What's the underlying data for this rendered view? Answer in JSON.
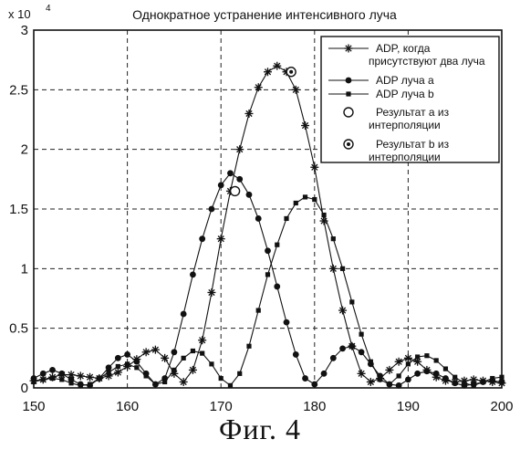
{
  "figure": {
    "caption": "Фиг. 4"
  },
  "chart_data": {
    "type": "line",
    "title": "Однократное устранение интенсивного луча",
    "xlabel": "",
    "ylabel": "",
    "y_scale_label": "x 10",
    "y_scale_exponent": "4",
    "xlim": [
      150,
      200
    ],
    "ylim": [
      0,
      3
    ],
    "xticks": [
      "150",
      "160",
      "170",
      "180",
      "190",
      "200"
    ],
    "yticks": [
      "0",
      "0.5",
      "1",
      "1.5",
      "2",
      "2.5",
      "3"
    ],
    "grid": "dashed",
    "legend_position": "top-right",
    "series": [
      {
        "name": "ADP, когда присутствуют два луча",
        "name_lines": [
          "ADP, когда",
          "присутствуют два луча"
        ],
        "marker": "star",
        "line": true,
        "x": [
          150,
          151,
          152,
          153,
          154,
          155,
          156,
          157,
          158,
          159,
          160,
          161,
          162,
          163,
          164,
          165,
          166,
          167,
          168,
          169,
          170,
          171,
          172,
          173,
          174,
          175,
          176,
          177,
          178,
          179,
          180,
          181,
          182,
          183,
          184,
          185,
          186,
          187,
          188,
          189,
          190,
          191,
          192,
          193,
          194,
          195,
          196,
          197,
          198,
          199,
          200
        ],
        "values": [
          0.06,
          0.07,
          0.09,
          0.11,
          0.11,
          0.1,
          0.09,
          0.08,
          0.1,
          0.13,
          0.18,
          0.24,
          0.3,
          0.32,
          0.25,
          0.12,
          0.05,
          0.15,
          0.4,
          0.8,
          1.25,
          1.65,
          2.0,
          2.3,
          2.52,
          2.65,
          2.7,
          2.65,
          2.5,
          2.2,
          1.85,
          1.4,
          1.0,
          0.65,
          0.35,
          0.12,
          0.05,
          0.08,
          0.15,
          0.22,
          0.25,
          0.22,
          0.15,
          0.09,
          0.06,
          0.05,
          0.06,
          0.07,
          0.06,
          0.05,
          0.04
        ]
      },
      {
        "name": "ADP луча a",
        "name_lines": [
          "ADP луча a"
        ],
        "marker": "dot",
        "line": true,
        "x": [
          150,
          151,
          152,
          153,
          154,
          155,
          156,
          157,
          158,
          159,
          160,
          161,
          162,
          163,
          164,
          165,
          166,
          167,
          168,
          169,
          170,
          171,
          172,
          173,
          174,
          175,
          176,
          177,
          178,
          179,
          180,
          181,
          182,
          183,
          184,
          185,
          186,
          187,
          188,
          189,
          190,
          191,
          192,
          193,
          194,
          195,
          196,
          197,
          198,
          199,
          200
        ],
        "values": [
          0.08,
          0.12,
          0.15,
          0.12,
          0.07,
          0.03,
          0.02,
          0.08,
          0.17,
          0.25,
          0.28,
          0.22,
          0.12,
          0.03,
          0.08,
          0.3,
          0.62,
          0.95,
          1.25,
          1.5,
          1.7,
          1.8,
          1.75,
          1.62,
          1.42,
          1.15,
          0.85,
          0.55,
          0.28,
          0.08,
          0.03,
          0.12,
          0.25,
          0.33,
          0.35,
          0.3,
          0.2,
          0.1,
          0.03,
          0.02,
          0.07,
          0.12,
          0.14,
          0.12,
          0.08,
          0.04,
          0.02,
          0.03,
          0.05,
          0.06,
          0.05
        ]
      },
      {
        "name": "ADP луча b",
        "name_lines": [
          "ADP луча b"
        ],
        "marker": "square",
        "line": true,
        "x": [
          150,
          151,
          152,
          153,
          154,
          155,
          156,
          157,
          158,
          159,
          160,
          161,
          162,
          163,
          164,
          165,
          166,
          167,
          168,
          169,
          170,
          171,
          172,
          173,
          174,
          175,
          176,
          177,
          178,
          179,
          180,
          181,
          182,
          183,
          184,
          185,
          186,
          187,
          188,
          189,
          190,
          191,
          192,
          193,
          194,
          195,
          196,
          197,
          198,
          199,
          200
        ],
        "values": [
          0.05,
          0.07,
          0.08,
          0.07,
          0.04,
          0.02,
          0.03,
          0.08,
          0.13,
          0.18,
          0.2,
          0.17,
          0.1,
          0.03,
          0.05,
          0.15,
          0.25,
          0.31,
          0.29,
          0.2,
          0.08,
          0.02,
          0.12,
          0.35,
          0.65,
          0.95,
          1.2,
          1.42,
          1.55,
          1.6,
          1.58,
          1.45,
          1.25,
          1.0,
          0.72,
          0.45,
          0.22,
          0.07,
          0.03,
          0.1,
          0.2,
          0.26,
          0.27,
          0.23,
          0.16,
          0.09,
          0.04,
          0.02,
          0.05,
          0.08,
          0.09
        ]
      },
      {
        "name": "Результат а из интерполяции",
        "name_lines": [
          "Результат а из",
          "интерполяции"
        ],
        "marker": "open-circle",
        "line": false,
        "x": [
          171.5
        ],
        "values": [
          1.65
        ]
      },
      {
        "name": "Результат b из интерполяции",
        "name_lines": [
          "Результат b из",
          "интерполяции"
        ],
        "marker": "open-circle-dot",
        "line": false,
        "x": [
          177.5
        ],
        "values": [
          2.65
        ]
      }
    ]
  }
}
